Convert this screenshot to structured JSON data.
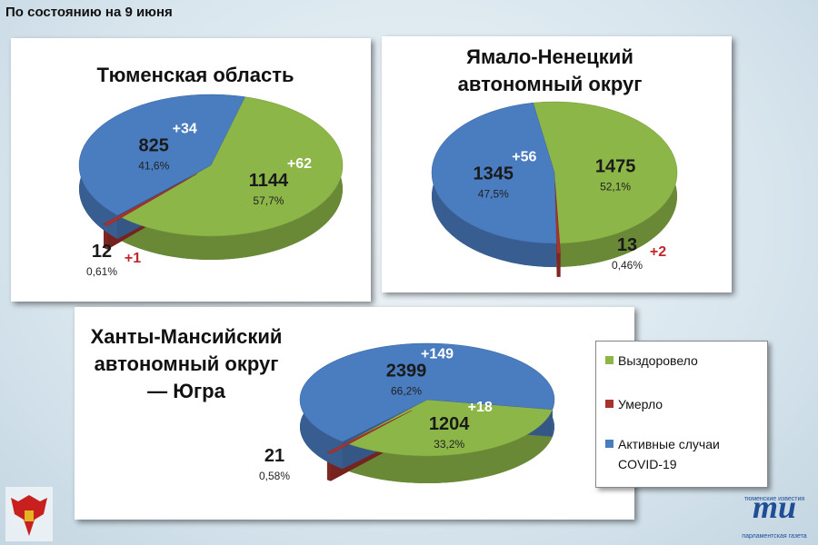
{
  "header": {
    "date_note": "По состоянию на 9 июня"
  },
  "legend": {
    "items": [
      "Выздоровело",
      "Умерло",
      "Активные случаи COVID-19"
    ],
    "colors": [
      "#8db648",
      "#a8322d",
      "#4a7cc0"
    ]
  },
  "chart_data": [
    {
      "type": "pie",
      "title": "Тюменская область",
      "values": [
        1144,
        12,
        825
      ],
      "shares": [
        57.7,
        0.61,
        41.6
      ],
      "share_labels": [
        "57,7%",
        "0,61%",
        "41,6%"
      ],
      "increments": [
        62,
        1,
        34
      ],
      "increment_labels": [
        "+62",
        "+1",
        "+34"
      ]
    },
    {
      "type": "pie",
      "title": "Ямало-Ненецкий автономный округ",
      "values": [
        1475,
        13,
        1345
      ],
      "shares": [
        52.1,
        0.46,
        47.5
      ],
      "share_labels": [
        "52,1%",
        "0,46%",
        "47,5%"
      ],
      "increments": [
        null,
        2,
        56
      ],
      "increment_labels": [
        null,
        "+2",
        "+56"
      ]
    },
    {
      "type": "pie",
      "title": "Ханты-Мансийский автономный округ — Югра",
      "values": [
        1204,
        21,
        2399
      ],
      "shares": [
        33.2,
        0.58,
        66.2
      ],
      "share_labels": [
        "33,2%",
        "0,58%",
        "66,2%"
      ],
      "increments": [
        18,
        null,
        149
      ],
      "increment_labels": [
        "+18",
        null,
        "+149"
      ]
    }
  ],
  "logo": {
    "top": "тюменские известия",
    "mark": "ти",
    "bottom": "парламентская газета"
  }
}
